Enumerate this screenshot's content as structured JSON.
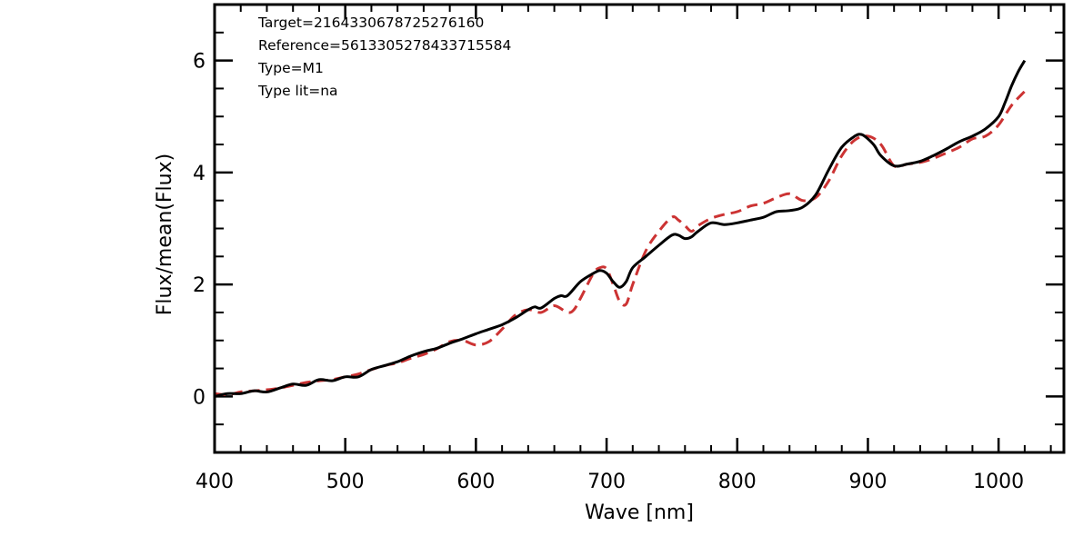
{
  "chart_data": {
    "type": "line",
    "xlabel": "Wave [nm]",
    "ylabel": "Flux/mean(Flux)",
    "xlim": [
      400,
      1050
    ],
    "ylim": [
      -1,
      7
    ],
    "x_ticks": [
      400,
      500,
      600,
      700,
      800,
      900,
      1000
    ],
    "y_ticks": [
      0,
      2,
      4,
      6
    ],
    "x_minor_step": 20,
    "y_minor_step": 0.5,
    "grid": false,
    "annotations": [
      "Target=2164330678725276160",
      "Reference=5613305278433715584",
      "Type=M1",
      "Type lit=na"
    ],
    "colors": {
      "target": "#000000",
      "reference": "#cc3333"
    },
    "series": [
      {
        "key": "target",
        "style": "solid",
        "x": [
          400,
          410,
          420,
          430,
          440,
          450,
          460,
          470,
          480,
          490,
          500,
          510,
          520,
          530,
          540,
          550,
          560,
          570,
          580,
          590,
          600,
          610,
          620,
          630,
          640,
          645,
          650,
          660,
          665,
          670,
          680,
          690,
          695,
          700,
          705,
          710,
          715,
          720,
          730,
          740,
          750,
          755,
          760,
          765,
          770,
          780,
          790,
          800,
          810,
          820,
          830,
          840,
          850,
          860,
          870,
          880,
          890,
          895,
          900,
          905,
          910,
          920,
          930,
          940,
          950,
          960,
          970,
          980,
          990,
          1000,
          1005,
          1010,
          1015,
          1020
        ],
        "values": [
          0.0,
          0.05,
          0.05,
          0.1,
          0.08,
          0.15,
          0.22,
          0.2,
          0.3,
          0.28,
          0.35,
          0.35,
          0.48,
          0.55,
          0.62,
          0.72,
          0.8,
          0.86,
          0.95,
          1.03,
          1.12,
          1.2,
          1.28,
          1.4,
          1.55,
          1.6,
          1.58,
          1.75,
          1.8,
          1.8,
          2.05,
          2.2,
          2.25,
          2.2,
          2.05,
          1.95,
          2.05,
          2.3,
          2.5,
          2.7,
          2.88,
          2.88,
          2.82,
          2.85,
          2.95,
          3.1,
          3.07,
          3.1,
          3.15,
          3.2,
          3.3,
          3.32,
          3.38,
          3.6,
          4.05,
          4.45,
          4.65,
          4.68,
          4.6,
          4.48,
          4.3,
          4.12,
          4.15,
          4.2,
          4.3,
          4.42,
          4.55,
          4.65,
          4.78,
          5.0,
          5.25,
          5.55,
          5.8,
          6.0
        ]
      },
      {
        "key": "reference",
        "style": "dashed",
        "x": [
          400,
          410,
          420,
          430,
          440,
          450,
          460,
          470,
          480,
          490,
          500,
          510,
          520,
          530,
          540,
          550,
          560,
          570,
          580,
          590,
          600,
          610,
          620,
          630,
          640,
          650,
          660,
          670,
          675,
          680,
          690,
          695,
          700,
          705,
          710,
          715,
          720,
          730,
          740,
          750,
          755,
          760,
          765,
          770,
          780,
          790,
          800,
          810,
          820,
          830,
          840,
          850,
          860,
          870,
          880,
          890,
          900,
          910,
          920,
          930,
          940,
          950,
          960,
          970,
          980,
          990,
          1000,
          1010,
          1020
        ],
        "values": [
          0.05,
          0.03,
          0.08,
          0.1,
          0.12,
          0.15,
          0.2,
          0.25,
          0.28,
          0.3,
          0.35,
          0.4,
          0.48,
          0.55,
          0.6,
          0.68,
          0.75,
          0.85,
          0.98,
          1.0,
          0.92,
          0.98,
          1.2,
          1.45,
          1.55,
          1.5,
          1.62,
          1.5,
          1.55,
          1.75,
          2.2,
          2.3,
          2.28,
          2.0,
          1.7,
          1.65,
          2.0,
          2.6,
          2.95,
          3.2,
          3.15,
          3.05,
          2.95,
          3.05,
          3.18,
          3.25,
          3.3,
          3.4,
          3.45,
          3.55,
          3.62,
          3.5,
          3.55,
          3.85,
          4.3,
          4.58,
          4.65,
          4.5,
          4.12,
          4.15,
          4.18,
          4.25,
          4.35,
          4.45,
          4.6,
          4.65,
          4.85,
          5.2,
          5.45
        ]
      }
    ]
  }
}
